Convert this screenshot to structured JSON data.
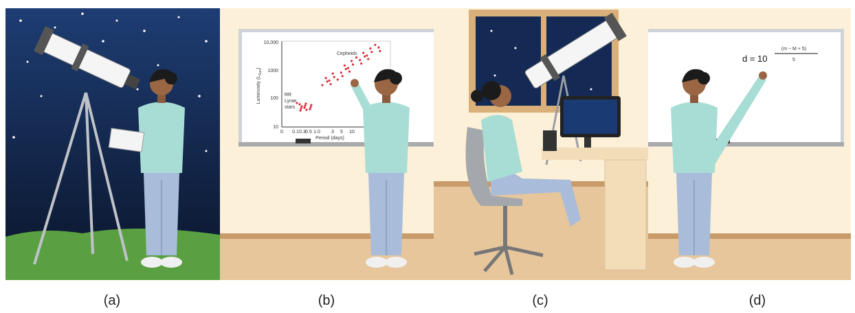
{
  "panels": [
    {
      "label": "(a)"
    },
    {
      "label": "(b)",
      "whiteboard": {
        "y_label": "Luminosity (L",
        "y_label_sub": "Sun",
        "y_label_end": ")",
        "y_ticks": [
          "10,000",
          "1000",
          "100",
          "10"
        ],
        "x_ticks": [
          "0",
          "0.1",
          "0.3",
          "0.5",
          "1.0",
          "3",
          "5",
          "10",
          "30"
        ],
        "x_label": "Period (days)",
        "cepheids": "Cepheids",
        "rr_lyrae": [
          "RR",
          "Lyrae",
          "stars"
        ]
      }
    },
    {
      "label": "(c)"
    },
    {
      "label": "(d)",
      "formula": {
        "lhs": "d = 10",
        "numerator": "(m − M + 5)",
        "denominator": "5"
      }
    }
  ]
}
